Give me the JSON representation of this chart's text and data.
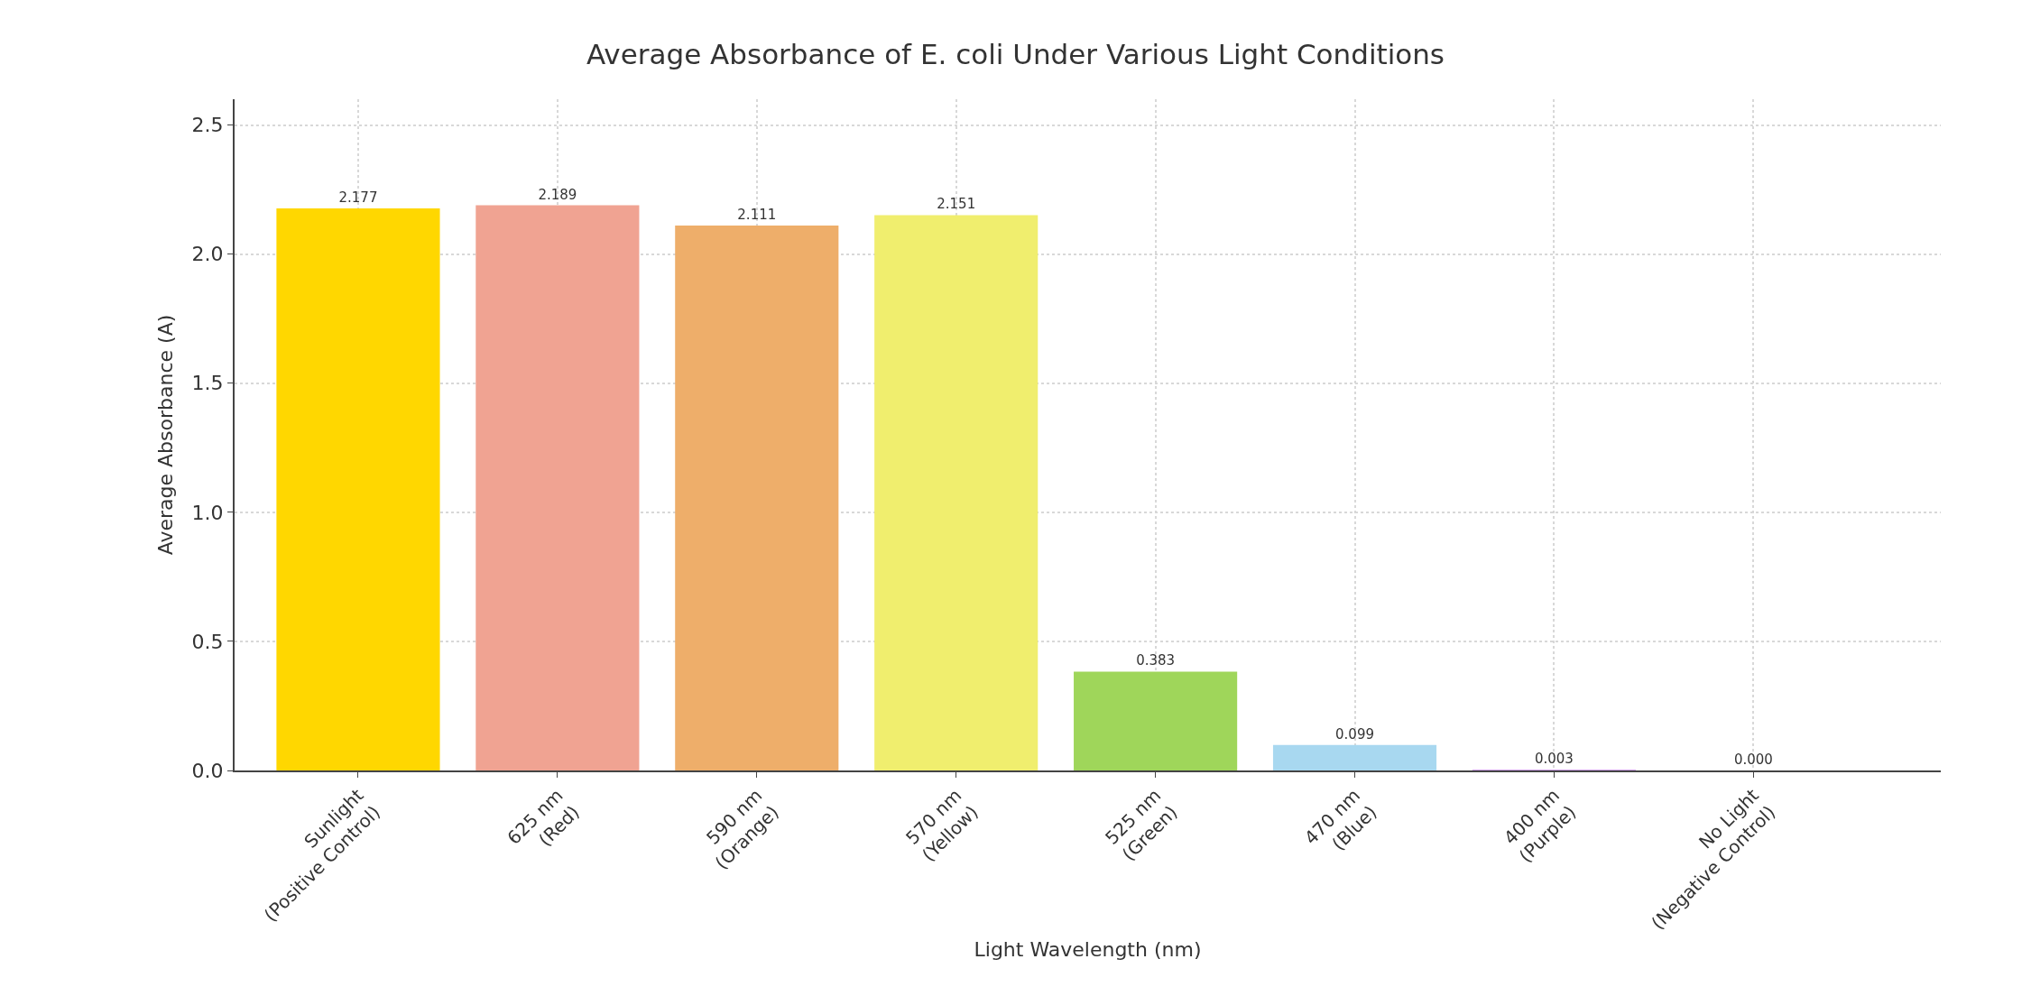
{
  "chart_data": {
    "type": "bar",
    "title": "Average Absorbance of E. coli Under Various Light Conditions",
    "xlabel": "Light Wavelength (nm)",
    "ylabel": "Average Absorbance (A)",
    "categories": [
      "Sunlight\n(Positive Control)",
      "625 nm\n(Red)",
      "590 nm\n(Orange)",
      "570 nm\n(Yellow)",
      "525 nm\n(Green)",
      "470 nm\n(Blue)",
      "400 nm\n(Purple)",
      "No Light\n(Negative Control)"
    ],
    "values": [
      2.177,
      2.189,
      2.111,
      2.151,
      0.383,
      0.099,
      0.003,
      0.0
    ],
    "value_labels": [
      "2.177",
      "2.189",
      "2.111",
      "2.151",
      "0.383",
      "0.099",
      "0.003",
      "0.000"
    ],
    "colors": [
      "#ffd700",
      "#f0a392",
      "#eeae6a",
      "#f0ee6e",
      "#9fd65a",
      "#a8d8f0",
      "#d0a0f0",
      "#cccccc"
    ],
    "ylim": [
      0,
      2.6
    ],
    "yticks": [
      {
        "value": 0,
        "label": "0.0"
      },
      0.5,
      {
        "value": 1,
        "label": "1.0"
      },
      1.5,
      {
        "value": 2,
        "label": "2.0"
      },
      2.5
    ],
    "grid": true
  }
}
